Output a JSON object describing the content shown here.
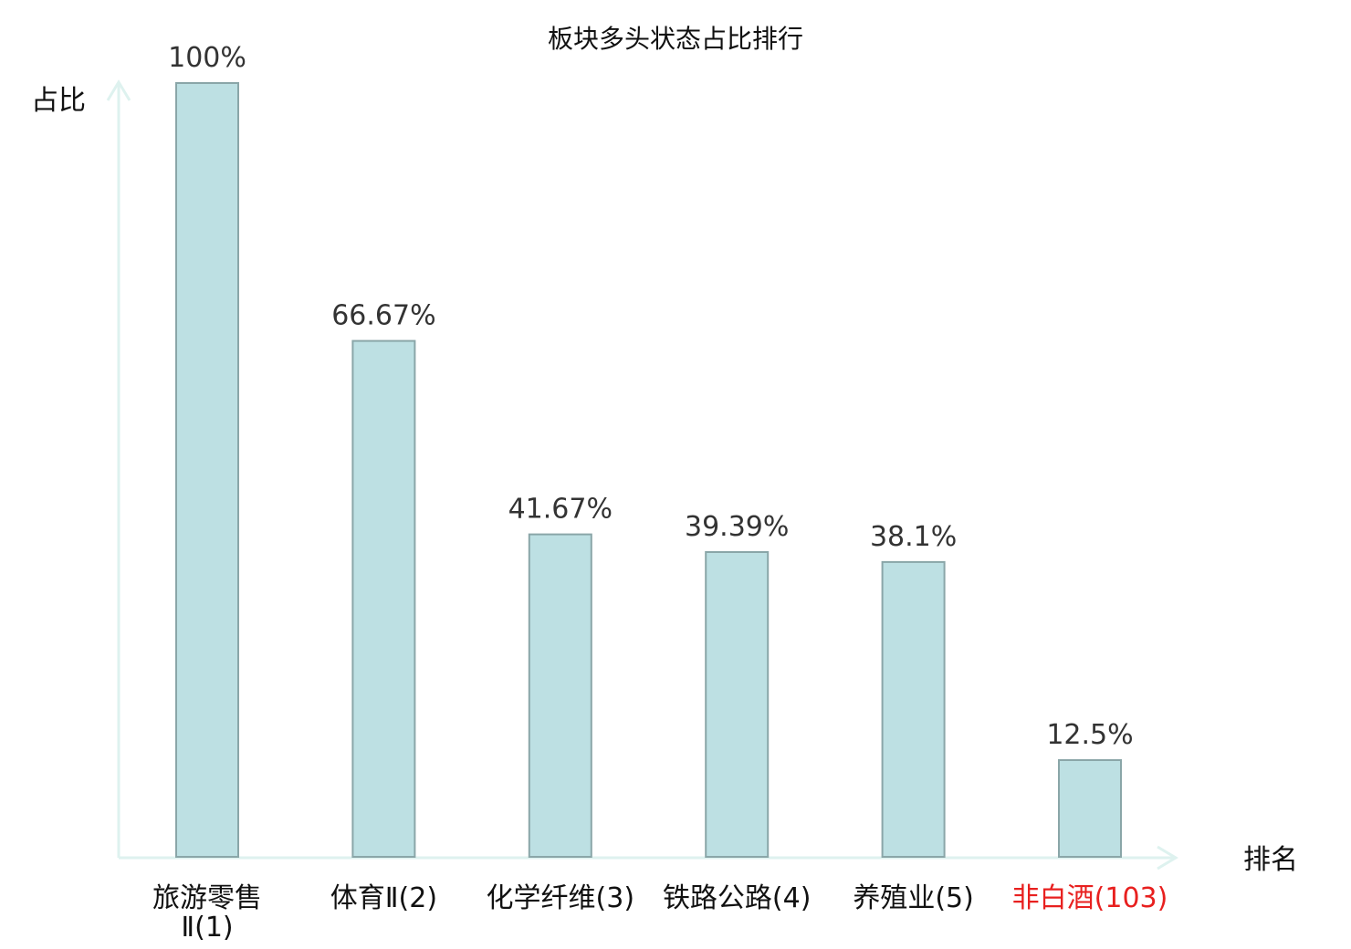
{
  "chart_data": {
    "type": "bar",
    "title": "板块多头状态占比排行",
    "ylabel": "占比",
    "xlabel": "排名",
    "ylim": [
      0,
      100
    ],
    "grid": false,
    "legend": "none",
    "categories": [
      [
        "旅游零售",
        "Ⅱ(1)"
      ],
      [
        "体育Ⅱ(2)"
      ],
      [
        "化学纤维(3)"
      ],
      [
        "铁路公路(4)"
      ],
      [
        "养殖业(5)"
      ],
      [
        "非白酒(103)"
      ]
    ],
    "values": [
      100,
      66.67,
      41.67,
      39.39,
      38.1,
      12.5
    ],
    "value_labels": [
      "100%",
      "66.67%",
      "41.67%",
      "39.39%",
      "38.1%",
      "12.5%"
    ],
    "highlight_index": 5,
    "colors": {
      "bar_fill": "#bde0e3",
      "bar_stroke": "#8aa6a8",
      "axis": "#def2ef",
      "text": "#111111",
      "value_text": "#333333",
      "highlight": "#e8201f"
    }
  }
}
